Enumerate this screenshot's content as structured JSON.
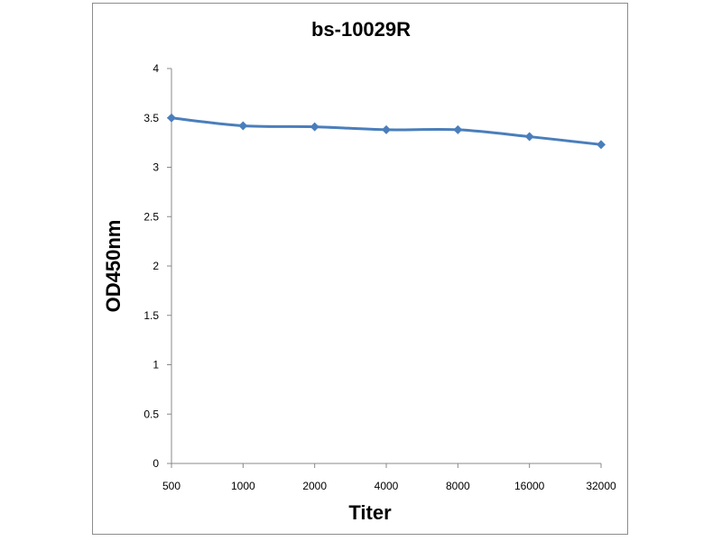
{
  "chart_data": {
    "type": "line",
    "title": "bs-10029R",
    "xlabel": "Titer",
    "ylabel": "OD450nm",
    "categories": [
      "500",
      "1000",
      "2000",
      "4000",
      "8000",
      "16000",
      "32000"
    ],
    "series": [
      {
        "values": [
          3.5,
          3.42,
          3.41,
          3.38,
          3.38,
          3.31,
          3.23
        ],
        "color": "#4a7ebb",
        "marker": "diamond"
      }
    ],
    "ylim": [
      0,
      4
    ],
    "yticks": [
      "0",
      "0.5",
      "1",
      "1.5",
      "2",
      "2.5",
      "3",
      "3.5",
      "4"
    ],
    "grid": false,
    "legend": "none"
  }
}
